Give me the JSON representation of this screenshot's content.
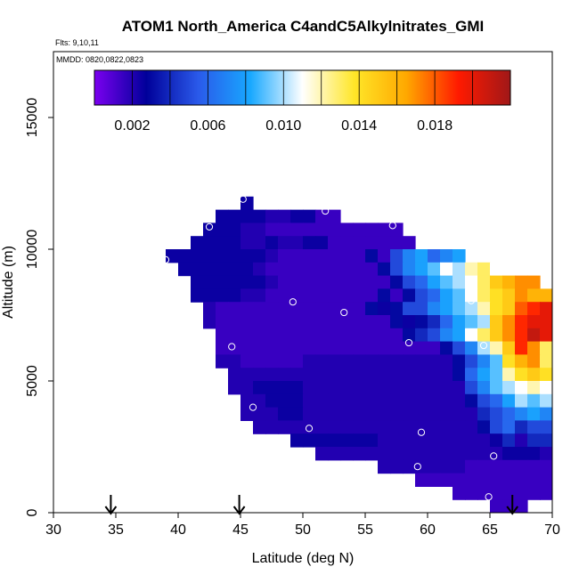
{
  "header": {
    "title": "ATOM1 North_America C4andC5Alkylnitrates_GMI",
    "flights": "Flts: 9,10,11",
    "mmdd": "MMDD: 0820,0822,0823"
  },
  "colorbar": {
    "tick_labels": [
      "0.002",
      "0.006",
      "0.010",
      "0.014",
      "0.018"
    ],
    "tick_values": [
      0.002,
      0.006,
      0.01,
      0.014,
      0.018
    ],
    "range": [
      0.0,
      0.022
    ],
    "stops": [
      "#7B00F0",
      "#00009A",
      "#2A5AEA",
      "#18A8FF",
      "#FFFFFF",
      "#FFE628",
      "#FFA800",
      "#FF1A00",
      "#A01818"
    ]
  },
  "chart_data": {
    "type": "heatmap",
    "title": "ATOM1 North_America C4andC5Alkylnitrates_GMI",
    "xlabel": "Latitude (deg N)",
    "ylabel": "Altitude (m)",
    "xlim": [
      30,
      70
    ],
    "ylim": [
      0,
      17500
    ],
    "xticks": [
      "30",
      "35",
      "40",
      "45",
      "50",
      "55",
      "60",
      "65",
      "70"
    ],
    "yticks": [
      "0",
      "5000",
      "10000",
      "15000"
    ],
    "cell_width_deg": 1,
    "cell_height_m": 500,
    "rows": [
      {
        "alt": 11750,
        "lat_start": 45,
        "values": [
          0.0025
        ]
      },
      {
        "alt": 11250,
        "lat_start": 43,
        "values": [
          0.0025,
          0.0025,
          0.0025,
          0.0025,
          0.002,
          0.002,
          0.0025,
          0.0025,
          0.0015,
          0.0015
        ]
      },
      {
        "alt": 10750,
        "lat_start": 42,
        "values": [
          0.0025,
          0.0025,
          0.0025,
          0.002,
          0.002,
          0.0015,
          0.0015,
          0.0015,
          0.0015,
          0.0015,
          0.0015,
          0.0015,
          0.0015,
          0.0015,
          0.0015,
          0.0015
        ]
      },
      {
        "alt": 10250,
        "lat_start": 41,
        "values": [
          0.0025,
          0.0025,
          0.0025,
          0.0025,
          0.002,
          0.002,
          0.0025,
          0.002,
          0.002,
          0.0025,
          0.0025,
          0.0015,
          0.0015,
          0.0015,
          0.0015,
          0.0015,
          0.0015,
          0.0015
        ]
      },
      {
        "alt": 9750,
        "lat_start": 39,
        "values": [
          0.0025,
          0.0025,
          0.0025,
          0.0025,
          0.0025,
          0.0025,
          0.0025,
          0.0025,
          0.002,
          0.0015,
          0.0015,
          0.0015,
          0.0015,
          0.0015,
          0.0015,
          0.0015,
          0.003,
          0.0015,
          0.005,
          0.007,
          0.008,
          0.006,
          0.007,
          0.008
        ]
      },
      {
        "alt": 9250,
        "lat_start": 40,
        "values": [
          0.0025,
          0.0025,
          0.0025,
          0.0025,
          0.0025,
          0.0025,
          0.002,
          0.0015,
          0.0015,
          0.0015,
          0.0015,
          0.0015,
          0.0015,
          0.0015,
          0.0015,
          0.0015,
          0.003,
          0.005,
          0.007,
          0.008,
          0.009,
          0.011,
          0.01,
          0.012,
          0.013,
          0.011
        ]
      },
      {
        "alt": 8750,
        "lat_start": 41,
        "values": [
          0.0025,
          0.0025,
          0.0025,
          0.0025,
          0.0025,
          0.0025,
          0.002,
          0.0015,
          0.0015,
          0.0015,
          0.0015,
          0.0015,
          0.0015,
          0.0015,
          0.0015,
          0.0015,
          0.003,
          0.005,
          0.006,
          0.008,
          0.009,
          0.01,
          0.011,
          0.013,
          0.015,
          0.016,
          0.017,
          0.017
        ]
      },
      {
        "alt": 8250,
        "lat_start": 41,
        "values": [
          0.0025,
          0.0025,
          0.0025,
          0.0025,
          0.002,
          0.002,
          0.0015,
          0.0015,
          0.0015,
          0.0015,
          0.0015,
          0.0015,
          0.0015,
          0.0015,
          0.0015,
          0.003,
          0.0015,
          0.003,
          0.005,
          0.006,
          0.008,
          0.009,
          0.011,
          0.013,
          0.014,
          0.015,
          0.017,
          0.016,
          0.016,
          0.014
        ]
      },
      {
        "alt": 7750,
        "lat_start": 42,
        "values": [
          0.002,
          0.0015,
          0.0015,
          0.0015,
          0.0015,
          0.0015,
          0.0015,
          0.0015,
          0.0015,
          0.0015,
          0.0015,
          0.0015,
          0.0015,
          0.003,
          0.0025,
          0.003,
          0.005,
          0.005,
          0.007,
          0.008,
          0.009,
          0.01,
          0.012,
          0.014,
          0.015,
          0.018,
          0.019,
          0.02,
          0.019
        ]
      },
      {
        "alt": 7250,
        "lat_start": 42,
        "values": [
          0.002,
          0.0015,
          0.0015,
          0.0015,
          0.0015,
          0.0015,
          0.0015,
          0.0015,
          0.0015,
          0.0015,
          0.0015,
          0.0015,
          0.0015,
          0.0015,
          0.0015,
          0.003,
          0.0025,
          0.003,
          0.004,
          0.006,
          0.008,
          0.009,
          0.01,
          0.015,
          0.017,
          0.019,
          0.02,
          0.02,
          0.018
        ]
      },
      {
        "alt": 6750,
        "lat_start": 43,
        "values": [
          0.0015,
          0.0015,
          0.0015,
          0.0015,
          0.0015,
          0.0015,
          0.0015,
          0.0015,
          0.0015,
          0.0015,
          0.0015,
          0.0015,
          0.0015,
          0.0015,
          0.0015,
          0.003,
          0.004,
          0.005,
          0.007,
          0.008,
          0.011,
          0.013,
          0.015,
          0.017,
          0.019,
          0.021,
          0.02
        ]
      },
      {
        "alt": 6250,
        "lat_start": 43,
        "values": [
          0.0015,
          0.0015,
          0.0015,
          0.0015,
          0.0015,
          0.0015,
          0.0015,
          0.0015,
          0.0015,
          0.0015,
          0.0015,
          0.0015,
          0.0015,
          0.0015,
          0.0015,
          0.0015,
          0.0015,
          0.0015,
          0.003,
          0.005,
          0.007,
          0.01,
          0.012,
          0.015,
          0.019,
          0.017,
          0.013
        ]
      },
      {
        "alt": 5750,
        "lat_start": 43,
        "values": [
          0.002,
          0.002,
          0.0015,
          0.0015,
          0.0015,
          0.0015,
          0.0015,
          0.002,
          0.002,
          0.002,
          0.002,
          0.002,
          0.002,
          0.002,
          0.002,
          0.002,
          0.002,
          0.002,
          0.002,
          0.003,
          0.005,
          0.007,
          0.009,
          0.014,
          0.016,
          0.017,
          0.013
        ]
      },
      {
        "alt": 5250,
        "lat_start": 44,
        "values": [
          0.002,
          0.002,
          0.002,
          0.002,
          0.002,
          0.002,
          0.002,
          0.002,
          0.002,
          0.002,
          0.002,
          0.002,
          0.002,
          0.002,
          0.002,
          0.002,
          0.002,
          0.002,
          0.003,
          0.006,
          0.008,
          0.009,
          0.012,
          0.014,
          0.015,
          0.014
        ]
      },
      {
        "alt": 4750,
        "lat_start": 44,
        "values": [
          0.002,
          0.002,
          0.0025,
          0.0025,
          0.0025,
          0.0025,
          0.002,
          0.002,
          0.002,
          0.002,
          0.002,
          0.002,
          0.002,
          0.002,
          0.002,
          0.002,
          0.002,
          0.002,
          0.002,
          0.005,
          0.007,
          0.009,
          0.01,
          0.011,
          0.012,
          0.011
        ]
      },
      {
        "alt": 4250,
        "lat_start": 45,
        "values": [
          0.002,
          0.002,
          0.0025,
          0.0025,
          0.0025,
          0.002,
          0.002,
          0.002,
          0.002,
          0.002,
          0.002,
          0.002,
          0.002,
          0.002,
          0.002,
          0.002,
          0.002,
          0.002,
          0.003,
          0.005,
          0.006,
          0.008,
          0.01,
          0.009,
          0.01
        ]
      },
      {
        "alt": 3750,
        "lat_start": 45,
        "values": [
          0.002,
          0.002,
          0.002,
          0.0025,
          0.0025,
          0.002,
          0.002,
          0.002,
          0.002,
          0.002,
          0.002,
          0.002,
          0.002,
          0.002,
          0.002,
          0.002,
          0.002,
          0.002,
          0.002,
          0.004,
          0.005,
          0.006,
          0.007,
          0.008,
          0.007
        ]
      },
      {
        "alt": 3250,
        "lat_start": 46,
        "values": [
          0.002,
          0.002,
          0.002,
          0.002,
          0.002,
          0.002,
          0.002,
          0.002,
          0.002,
          0.002,
          0.002,
          0.002,
          0.002,
          0.002,
          0.002,
          0.002,
          0.002,
          0.002,
          0.003,
          0.005,
          0.006,
          0.004,
          0.005,
          0.005
        ]
      },
      {
        "alt": 2750,
        "lat_start": 49,
        "values": [
          0.0025,
          0.0025,
          0.0025,
          0.0025,
          0.0025,
          0.0025,
          0.0025,
          0.002,
          0.002,
          0.002,
          0.002,
          0.002,
          0.002,
          0.002,
          0.002,
          0.002,
          0.0025,
          0.004,
          0.002,
          0.004,
          0.004
        ]
      },
      {
        "alt": 2250,
        "lat_start": 51,
        "values": [
          0.002,
          0.002,
          0.002,
          0.002,
          0.002,
          0.002,
          0.002,
          0.002,
          0.002,
          0.002,
          0.002,
          0.002,
          0.002,
          0.002,
          0.002,
          0.0025,
          0.0025,
          0.0025,
          0.002
        ]
      },
      {
        "alt": 1750,
        "lat_start": 56,
        "values": [
          0.002,
          0.002,
          0.002,
          0.002,
          0.002,
          0.002,
          0.002,
          0.0015,
          0.0015,
          0.0015,
          0.0015,
          0.0015,
          0.0015,
          0.0015
        ]
      },
      {
        "alt": 1250,
        "lat_start": 59,
        "values": [
          0.0015,
          0.0015,
          0.0015,
          0.0015,
          0.0015,
          0.0015,
          0.0015,
          0.0015,
          0.0015,
          0.0015,
          0.0015
        ]
      },
      {
        "alt": 750,
        "lat_start": 62,
        "values": [
          0.0015,
          0.0015,
          0.0015,
          0.0015,
          0.0015,
          0.0015,
          0.0015,
          0.0015
        ]
      },
      {
        "alt": 250,
        "lat_start": 65,
        "values": [
          0.0015,
          0.0015,
          0.0015
        ]
      }
    ],
    "markers": [
      [
        45.2,
        11900
      ],
      [
        51.8,
        11450
      ],
      [
        42.5,
        10850
      ],
      [
        57.2,
        10900
      ],
      [
        39.0,
        9600
      ],
      [
        49.2,
        8000
      ],
      [
        53.3,
        7600
      ],
      [
        63.5,
        8050
      ],
      [
        44.3,
        6300
      ],
      [
        58.5,
        6450
      ],
      [
        64.5,
        6350
      ],
      [
        46.0,
        4000
      ],
      [
        50.5,
        3200
      ],
      [
        59.5,
        3050
      ],
      [
        59.2,
        1750
      ],
      [
        65.3,
        2150
      ],
      [
        64.9,
        600
      ]
    ],
    "arrows_lat": [
      34.6,
      44.9,
      66.8
    ]
  }
}
